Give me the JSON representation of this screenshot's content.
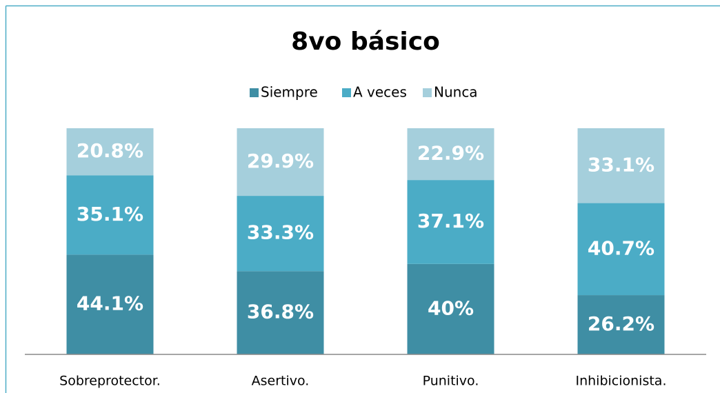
{
  "chart_data": {
    "type": "stacked_bar",
    "title": "8vo básico",
    "categories": [
      "Sobreprotector.",
      "Asertivo.",
      "Punitivo.",
      "Inhibicionista."
    ],
    "series": [
      {
        "name": "Siempre",
        "color": "#3f8ea4",
        "values": [
          44.1,
          36.8,
          40,
          26.2
        ],
        "value_labels": [
          "44.1%",
          "36.8%",
          "40%",
          "26.2%"
        ]
      },
      {
        "name": "A veces",
        "color": "#4bacc6",
        "values": [
          35.1,
          33.3,
          37.1,
          40.7
        ],
        "value_labels": [
          "35.1%",
          "33.3%",
          "37.1%",
          "40.7%"
        ]
      },
      {
        "name": "Nunca",
        "color": "#a5cfdc",
        "values": [
          20.8,
          29.9,
          22.9,
          33.1
        ],
        "value_labels": [
          "20.8%",
          "29.9%",
          "22.9%",
          "33.1%"
        ]
      }
    ],
    "ylim": [
      0,
      100
    ],
    "legend": "top"
  }
}
